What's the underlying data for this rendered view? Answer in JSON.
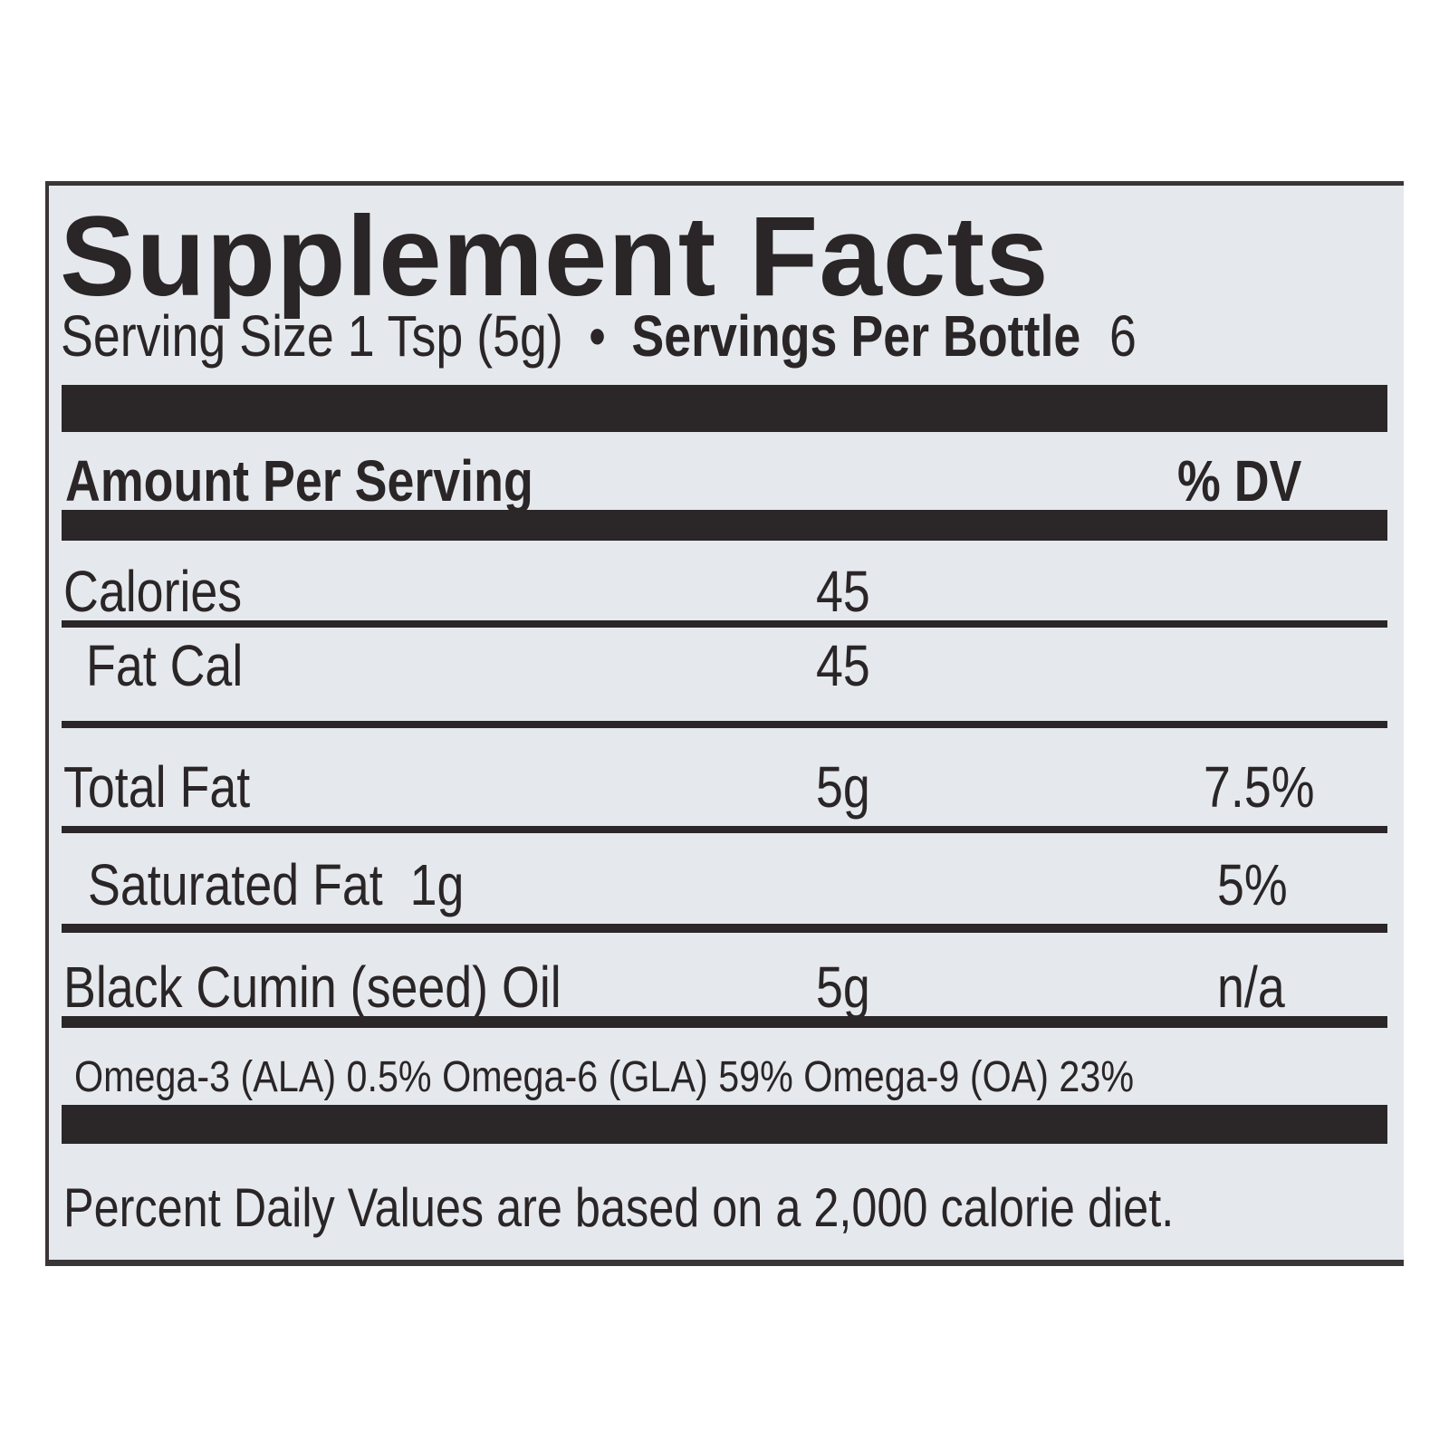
{
  "title": "Supplement Facts",
  "serving": {
    "size_label": "Serving Size 1 Tsp (5g)",
    "separator": "•",
    "per_container_label": "Servings Per Bottle",
    "per_container_value": "6"
  },
  "header": {
    "amount": "Amount Per Serving",
    "dv": "% DV"
  },
  "rows": [
    {
      "name": "Calories",
      "amount": "45",
      "dv": ""
    },
    {
      "name": "Fat Cal",
      "amount": "45",
      "dv": ""
    },
    {
      "name": "Total Fat",
      "amount": "5g",
      "dv": "7.5%"
    },
    {
      "name": "Saturated Fat  1g",
      "amount": "",
      "dv": "5%"
    },
    {
      "name": "Black Cumin (seed) Oil",
      "amount": "5g",
      "dv": "n/a"
    }
  ],
  "omega_line": "Omega-3 (ALA) 0.5% Omega-6 (GLA) 59% Omega-9 (OA) 23%",
  "footnote": "Percent Daily Values are based on a 2,000 calorie diet."
}
